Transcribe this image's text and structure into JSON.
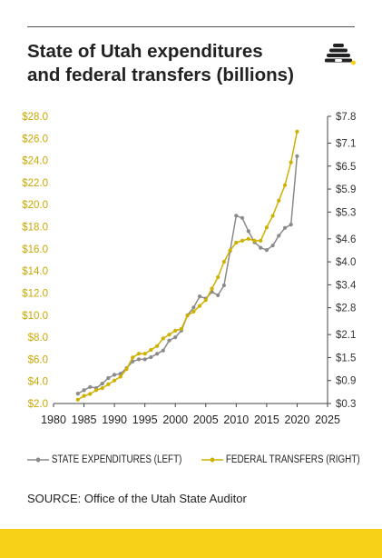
{
  "title_line1": "State of Utah expenditures",
  "title_line2": "and federal transfers (billions)",
  "source": "SOURCE: Office of the Utah State Auditor",
  "colors": {
    "expenditures": "#8a8a8a",
    "transfers": "#cfb000",
    "left_axis_text": "#c9a800",
    "band": "#f7d117"
  },
  "logo_icon": "beehive-icon",
  "chart_data": {
    "type": "line",
    "title": "State of Utah expenditures and federal transfers (billions)",
    "x_ticks": [
      1980,
      1985,
      1990,
      1995,
      2000,
      2005,
      2010,
      2015,
      2020,
      2025
    ],
    "xlim": [
      1980,
      2025
    ],
    "y_left_ticks": [
      "$2.0",
      "$4.0",
      "$6.0",
      "$8.0",
      "$10.0",
      "$12.0",
      "$14.0",
      "$16.0",
      "$18.0",
      "$20.0",
      "$22.0",
      "$24.0",
      "$26.0",
      "$28.0"
    ],
    "y_left_lim": [
      2.0,
      28.0
    ],
    "y_right_ticks": [
      "$0.3",
      "$0.9",
      "$1.5",
      "$2.1",
      "$2.8",
      "$3.4",
      "$4.0",
      "$4.6",
      "$5.3",
      "$5.9",
      "$6.5",
      "$7.1",
      "$7.8"
    ],
    "y_right_lim": [
      0.3,
      7.8
    ],
    "legend_placement": "bottom",
    "series": [
      {
        "name": "STATE EXPENDITURES (LEFT)",
        "axis": "left",
        "x": [
          1984,
          1985,
          1986,
          1987,
          1988,
          1989,
          1990,
          1991,
          1992,
          1993,
          1994,
          1995,
          1996,
          1997,
          1998,
          1999,
          2000,
          2001,
          2002,
          2003,
          2004,
          2005,
          2006,
          2007,
          2008,
          2009,
          2010,
          2011,
          2012,
          2013,
          2014,
          2015,
          2016,
          2017,
          2018,
          2019,
          2020
        ],
        "values": [
          2.9,
          3.2,
          3.5,
          3.4,
          3.8,
          4.3,
          4.6,
          4.7,
          5.2,
          5.8,
          6.0,
          6.0,
          6.2,
          6.5,
          6.8,
          7.7,
          8.0,
          8.6,
          10.0,
          10.7,
          11.7,
          11.5,
          12.1,
          11.8,
          12.7,
          15.8,
          19.0,
          18.8,
          17.6,
          16.6,
          16.1,
          15.9,
          16.3,
          17.2,
          17.9,
          18.2,
          24.4
        ]
      },
      {
        "name": "FEDERAL TRANSFERS (RIGHT)",
        "axis": "right",
        "x": [
          1984,
          1985,
          1986,
          1987,
          1988,
          1989,
          1990,
          1991,
          1992,
          1993,
          1994,
          1995,
          1996,
          1997,
          1998,
          1999,
          2000,
          2001,
          2002,
          2003,
          2004,
          2005,
          2006,
          2007,
          2008,
          2009,
          2010,
          2011,
          2012,
          2013,
          2014,
          2015,
          2016,
          2017,
          2018,
          2019,
          2020
        ],
        "values": [
          0.4,
          0.5,
          0.55,
          0.65,
          0.7,
          0.8,
          0.9,
          1.0,
          1.2,
          1.5,
          1.6,
          1.6,
          1.7,
          1.8,
          2.0,
          2.1,
          2.2,
          2.25,
          2.6,
          2.7,
          2.85,
          3.0,
          3.3,
          3.6,
          4.0,
          4.3,
          4.5,
          4.55,
          4.6,
          4.55,
          4.55,
          4.9,
          5.2,
          5.6,
          6.0,
          6.6,
          7.4
        ]
      }
    ]
  }
}
